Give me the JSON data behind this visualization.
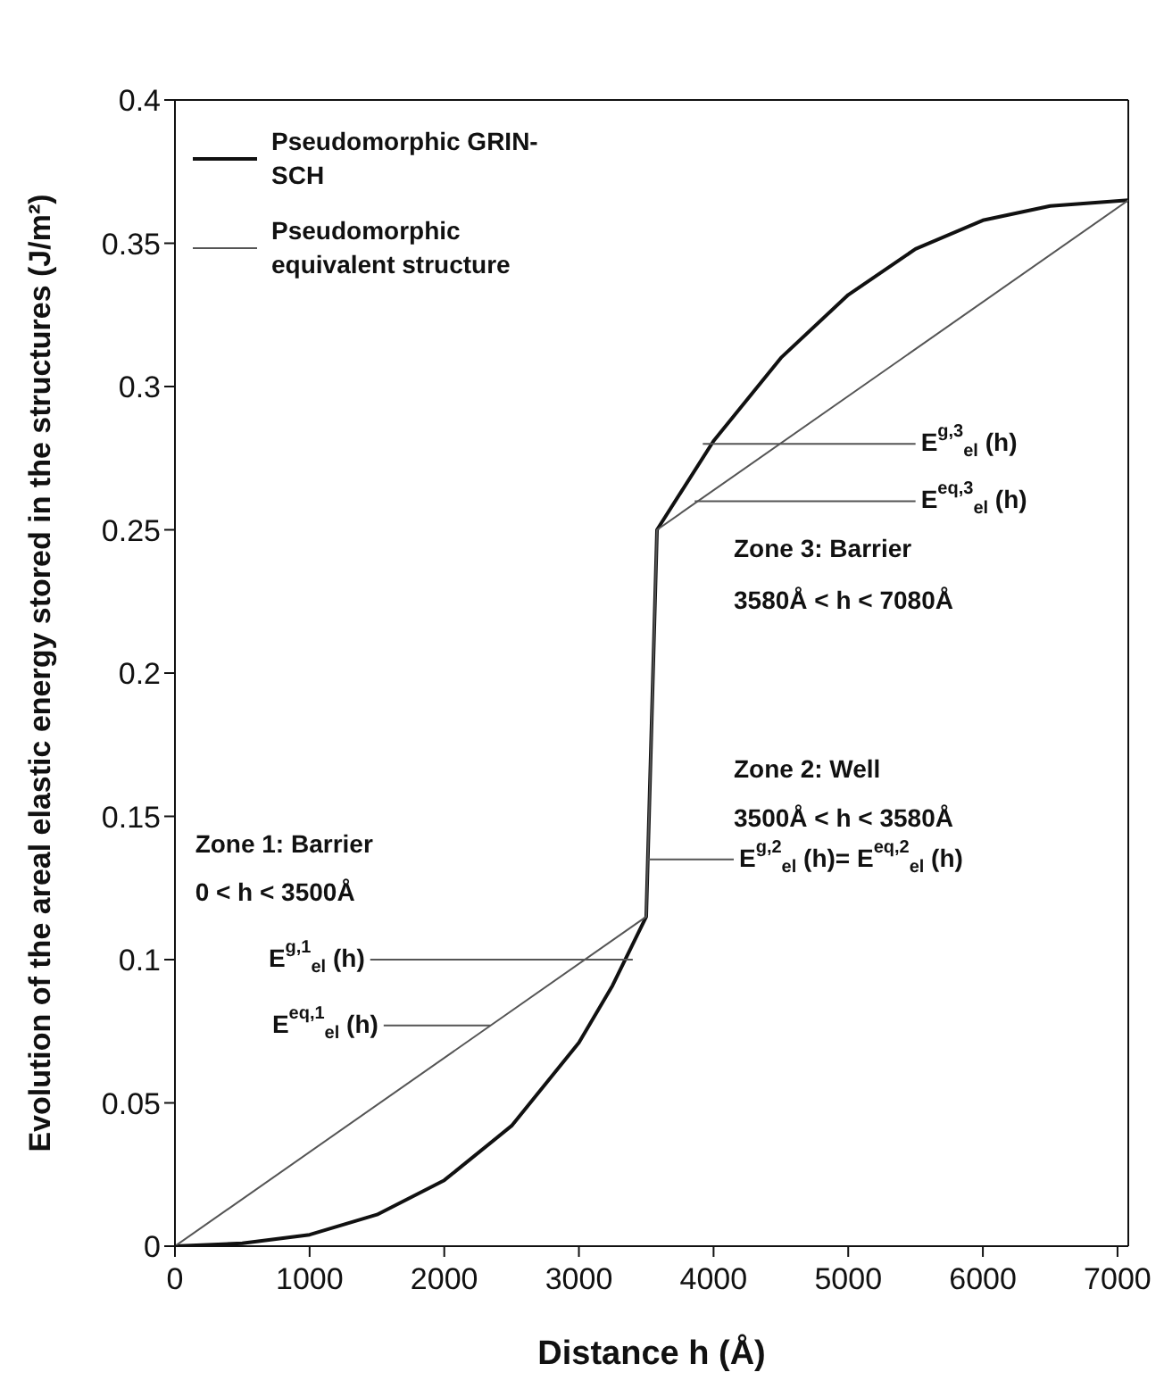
{
  "chart_data": {
    "type": "line",
    "xlabel": "Distance h (Å)",
    "ylabel": "Evolution of the areal elastic energy stored in the structures (J/m²)",
    "xlim": [
      0,
      7080
    ],
    "xticks": [
      0,
      1000,
      2000,
      3000,
      4000,
      5000,
      6000,
      7000
    ],
    "ylim": [
      0,
      0.4
    ],
    "yticks": [
      0,
      0.05,
      0.1,
      0.15,
      0.2,
      0.25,
      0.3,
      0.35,
      0.4
    ],
    "grid": false,
    "legend": "top left",
    "marker": "none",
    "line_style": "solid",
    "series": [
      {
        "name": "Pseudomorphic GRIN-SCH",
        "color": "#111111",
        "x": [
          0,
          500,
          1000,
          1500,
          2000,
          2500,
          3000,
          3250,
          3500,
          3580,
          4000,
          4500,
          5000,
          5500,
          6000,
          6500,
          7080
        ],
        "values": [
          0,
          0.001,
          0.004,
          0.011,
          0.023,
          0.042,
          0.071,
          0.091,
          0.115,
          0.25,
          0.281,
          0.31,
          0.332,
          0.348,
          0.358,
          0.363,
          0.365
        ]
      },
      {
        "name": "Pseudomorphic equivalent structure",
        "color": "#555555",
        "x": [
          0,
          3500,
          3580,
          7080
        ],
        "values": [
          0,
          0.115,
          0.25,
          0.365
        ]
      }
    ],
    "annotations": [
      "Zone 1: Barrier",
      "0 < h < 3500Å",
      "Zone 2: Well",
      "3500Å < h < 3580Å",
      "Zone 3: Barrier",
      "3580Å < h < 7080Å",
      {
        "text": "E$^{g,1}$$_{el}$ (h)",
        "x": 3400,
        "y": 0.1
      },
      "E$^{eq,1}$$_{el}$ (h)",
      "E$^{g,2}$$_{el}$ (h)= E$^{eq,2}$$_{el}$ (h)",
      {
        "text": "E$^{g,3}$$_{el}$ (h)",
        "x": 3920,
        "y": 0.28
      },
      {
        "text": "E$^{eq,3}$$_{el}$ (h)",
        "x": 3860,
        "y": 0.26
      }
    ]
  }
}
